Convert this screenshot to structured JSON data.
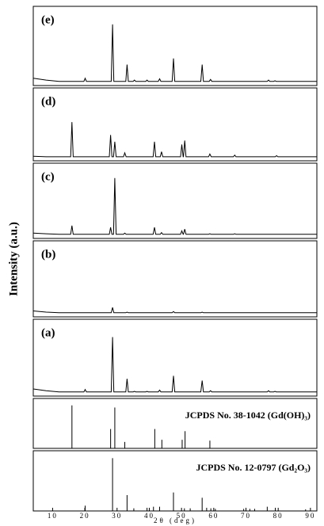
{
  "chart_data": {
    "type": "stacked",
    "ylabel": "Intensity (a.u.)",
    "xlabel": "2θ (deg)",
    "xlim": [
      4,
      92
    ],
    "xticks": [
      10,
      20,
      30,
      40,
      50,
      60,
      70,
      80,
      90
    ],
    "ylim": [
      0,
      105
    ],
    "color": "#000000",
    "panels": [
      {
        "type": "line",
        "label": "(e)",
        "x": [
          4,
          8,
          12,
          19.7,
          20.1,
          20.5,
          28.2,
          28.6,
          29.0,
          32.7,
          33.1,
          33.5,
          35.0,
          35.4,
          35.8,
          38.9,
          39.3,
          39.7,
          42.8,
          43.2,
          43.6,
          47.1,
          47.5,
          47.9,
          56.0,
          56.4,
          56.8,
          58.6,
          59.0,
          59.4,
          76.6,
          77.0,
          77.4,
          78.6,
          79.0,
          79.4,
          92
        ],
        "values": [
          8,
          5,
          3,
          3,
          8,
          3,
          3,
          95,
          3,
          3,
          30,
          3,
          3,
          5,
          3,
          3,
          5,
          3,
          3,
          7,
          3,
          3,
          40,
          3,
          3,
          30,
          3,
          3,
          6,
          3,
          3,
          5,
          3,
          3,
          4,
          3,
          3
        ]
      },
      {
        "type": "line",
        "label": "(d)",
        "x": [
          4,
          8,
          12,
          15.6,
          16,
          16.4,
          27.6,
          28,
          28.4,
          28.9,
          29.3,
          29.7,
          32.0,
          32.4,
          32.8,
          41.2,
          41.6,
          42.0,
          43.4,
          43.8,
          44.2,
          49.7,
          50.1,
          50.5,
          50.6,
          51.0,
          51.4,
          58.4,
          58.8,
          59.2,
          66.1,
          66.5,
          66.9,
          79.1,
          79.5,
          79.9,
          92
        ],
        "values": [
          4,
          3,
          3,
          3,
          65,
          3,
          3,
          42,
          3,
          3,
          30,
          3,
          3,
          10,
          3,
          3,
          30,
          3,
          3,
          12,
          3,
          3,
          25,
          3,
          3,
          32,
          3,
          3,
          8,
          3,
          3,
          6,
          3,
          3,
          5,
          3,
          3
        ]
      },
      {
        "type": "line",
        "label": "(c)",
        "x": [
          4,
          8,
          12,
          15.6,
          16,
          16.4,
          27.6,
          28,
          28.4,
          28.9,
          29.3,
          29.7,
          32.0,
          32.4,
          32.8,
          41.2,
          41.6,
          42.0,
          43.4,
          43.8,
          44.2,
          49.7,
          50.1,
          50.5,
          50.6,
          51.0,
          51.4,
          58.4,
          58.8,
          59.2,
          66.1,
          66.5,
          66.9,
          92
        ],
        "values": [
          5,
          4,
          3,
          3,
          18,
          3,
          3,
          15,
          3,
          3,
          100,
          3,
          3,
          5,
          3,
          3,
          15,
          3,
          3,
          6,
          3,
          3,
          9,
          3,
          3,
          12,
          3,
          3,
          4,
          3,
          3,
          4,
          3,
          3
        ]
      },
      {
        "type": "line",
        "label": "(b)",
        "x": [
          4,
          8,
          12,
          28.2,
          28.6,
          29.0,
          32.7,
          33.1,
          33.5,
          47.1,
          47.5,
          47.9,
          56.0,
          56.4,
          56.8,
          92
        ],
        "values": [
          6,
          4,
          3,
          3,
          12,
          3,
          3,
          4,
          3,
          3,
          5,
          3,
          3,
          4,
          3,
          3
        ]
      },
      {
        "type": "line",
        "label": "(a)",
        "x": [
          4,
          8,
          12,
          19.7,
          20.1,
          20.5,
          28.2,
          28.6,
          29.0,
          32.7,
          33.1,
          33.5,
          35.0,
          35.4,
          35.8,
          38.9,
          39.3,
          39.7,
          42.8,
          43.2,
          43.6,
          47.1,
          47.5,
          47.9,
          56.0,
          56.4,
          56.8,
          58.6,
          59.0,
          59.4,
          76.6,
          77.0,
          77.4,
          78.6,
          79.0,
          79.4,
          92
        ],
        "values": [
          8,
          5,
          3,
          3,
          7,
          3,
          3,
          95,
          3,
          3,
          25,
          3,
          3,
          4,
          3,
          3,
          4,
          3,
          3,
          6,
          3,
          3,
          30,
          3,
          3,
          22,
          3,
          3,
          5,
          3,
          3,
          5,
          3,
          3,
          4,
          3,
          3
        ]
      },
      {
        "type": "stick",
        "label": "JCPDS No. 38-1042 (Gd(OH)₃)",
        "x": [
          16.0,
          28.0,
          29.3,
          32.4,
          41.7,
          43.9,
          50.2,
          51.1,
          58.8
        ],
        "values": [
          100,
          45,
          95,
          15,
          45,
          20,
          20,
          40,
          18
        ]
      },
      {
        "type": "stick",
        "label": "JCPDS No. 12-0797 (Gd₂O₃)",
        "x": [
          20.1,
          28.6,
          33.1,
          35.2,
          39.3,
          41.3,
          43.2,
          47.5,
          50.9,
          52.7,
          56.4,
          57.8,
          59.1,
          60.5,
          69.3,
          71.2,
          72.7,
          76.6,
          79.1,
          88.5
        ],
        "values": [
          10,
          100,
          30,
          5,
          6,
          8,
          8,
          35,
          5,
          5,
          25,
          6,
          5,
          4,
          4,
          4,
          4,
          8,
          6,
          3
        ]
      }
    ]
  }
}
